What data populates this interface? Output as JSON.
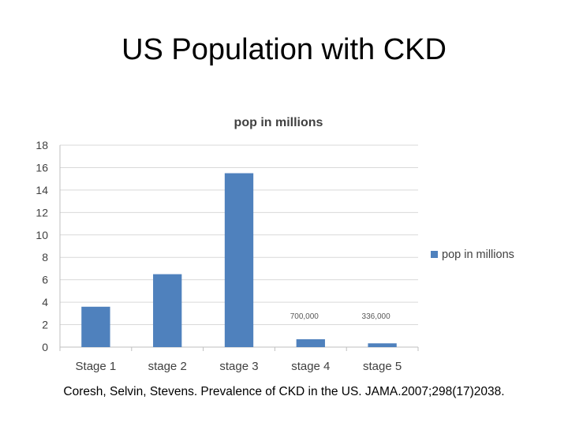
{
  "slide": {
    "title": "US Population with CKD",
    "citation": "Coresh, Selvin, Stevens. Prevalence of CKD in the US. JAMA.2007;298(17)2038."
  },
  "chart_data": {
    "type": "bar",
    "title": "pop in millions",
    "categories": [
      "Stage 1",
      "stage 2",
      "stage 3",
      "stage 4",
      "stage 5"
    ],
    "series": [
      {
        "name": "pop in millions",
        "values": [
          3.6,
          6.5,
          15.5,
          0.7,
          0.336
        ]
      }
    ],
    "annotations": [
      {
        "category": "stage 4",
        "text": "700,000"
      },
      {
        "category": "stage 5",
        "text": "336,000"
      }
    ],
    "ylim": [
      0,
      18
    ],
    "yticks": [
      0,
      2,
      4,
      6,
      8,
      10,
      12,
      14,
      16,
      18
    ],
    "grid": true,
    "legend_position": "right",
    "colors": {
      "bar": "#4f81bd",
      "grid": "#d9d9d9",
      "axis": "#bfbfbf",
      "text": "#404040"
    }
  }
}
